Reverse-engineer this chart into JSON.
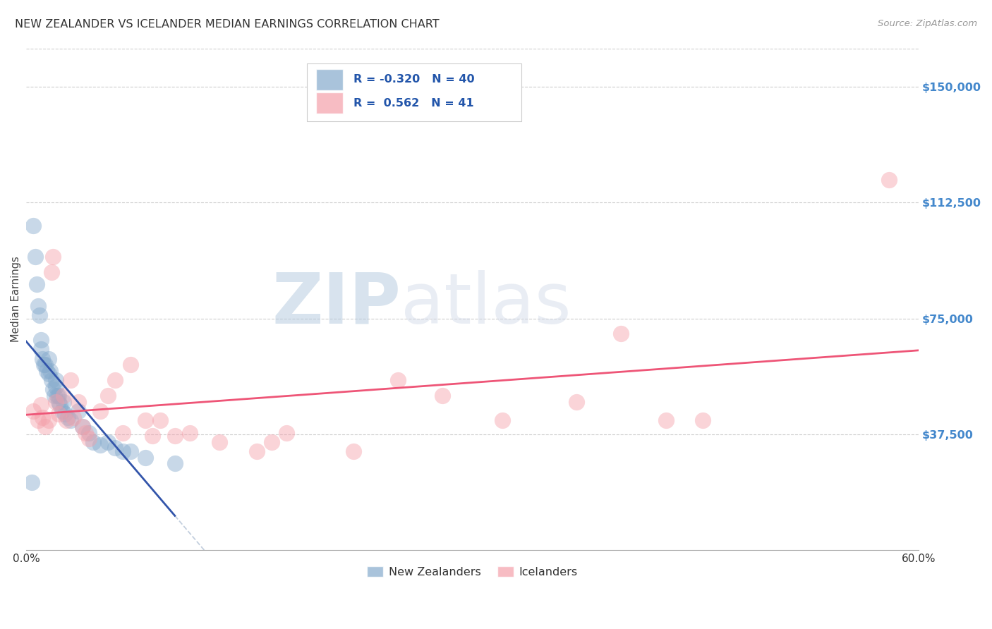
{
  "title": "NEW ZEALANDER VS ICELANDER MEDIAN EARNINGS CORRELATION CHART",
  "source": "Source: ZipAtlas.com",
  "ylabel": "Median Earnings",
  "xlim": [
    0.0,
    0.6
  ],
  "ylim": [
    0,
    162500
  ],
  "yticks": [
    0,
    37500,
    75000,
    112500,
    150000
  ],
  "ytick_labels": [
    "",
    "$37,500",
    "$75,000",
    "$112,500",
    "$150,000"
  ],
  "xticks": [
    0.0,
    0.1,
    0.2,
    0.3,
    0.4,
    0.5,
    0.6
  ],
  "xtick_labels": [
    "0.0%",
    "",
    "",
    "",
    "",
    "",
    "60.0%"
  ],
  "legend_r_nz": "-0.320",
  "legend_n_nz": "40",
  "legend_r_ic": "0.562",
  "legend_n_ic": "41",
  "blue_color": "#85AACC",
  "pink_color": "#F4A0AA",
  "trend_blue": "#3355AA",
  "trend_pink": "#EE5577",
  "blue_scatter_x": [
    0.004,
    0.005,
    0.006,
    0.007,
    0.008,
    0.009,
    0.01,
    0.01,
    0.011,
    0.012,
    0.013,
    0.014,
    0.015,
    0.015,
    0.016,
    0.017,
    0.018,
    0.019,
    0.02,
    0.02,
    0.021,
    0.022,
    0.022,
    0.023,
    0.024,
    0.025,
    0.026,
    0.028,
    0.03,
    0.035,
    0.038,
    0.042,
    0.045,
    0.05,
    0.055,
    0.06,
    0.065,
    0.07,
    0.08,
    0.1
  ],
  "blue_scatter_y": [
    22000,
    105000,
    95000,
    86000,
    79000,
    76000,
    68000,
    65000,
    62000,
    60000,
    60000,
    58000,
    57000,
    62000,
    58000,
    55000,
    52000,
    50000,
    55000,
    53000,
    50000,
    50000,
    48000,
    47000,
    45000,
    48000,
    44000,
    43000,
    42000,
    45000,
    40000,
    38000,
    35000,
    34000,
    35000,
    33000,
    32000,
    32000,
    30000,
    28000
  ],
  "pink_scatter_x": [
    0.005,
    0.008,
    0.01,
    0.011,
    0.013,
    0.015,
    0.017,
    0.018,
    0.02,
    0.022,
    0.025,
    0.027,
    0.03,
    0.032,
    0.035,
    0.038,
    0.04,
    0.042,
    0.05,
    0.055,
    0.06,
    0.065,
    0.07,
    0.08,
    0.085,
    0.09,
    0.1,
    0.11,
    0.13,
    0.155,
    0.165,
    0.175,
    0.22,
    0.25,
    0.28,
    0.32,
    0.37,
    0.4,
    0.43,
    0.455,
    0.58
  ],
  "pink_scatter_y": [
    45000,
    42000,
    47000,
    43000,
    40000,
    42000,
    90000,
    95000,
    48000,
    44000,
    50000,
    42000,
    55000,
    43000,
    48000,
    40000,
    38000,
    36000,
    45000,
    50000,
    55000,
    38000,
    60000,
    42000,
    37000,
    42000,
    37000,
    38000,
    35000,
    32000,
    35000,
    38000,
    32000,
    55000,
    50000,
    42000,
    48000,
    70000,
    42000,
    42000,
    120000
  ],
  "watermark_zip": "ZIP",
  "watermark_atlas": "atlas",
  "background_color": "#FFFFFF",
  "grid_color": "#CCCCCC"
}
